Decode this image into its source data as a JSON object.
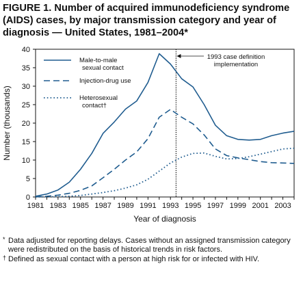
{
  "figure": {
    "title": "FIGURE 1. Number of acquired immunodeficiency syndrome (AIDS) cases, by major transmission category and year of diagnosis — United States, 1981–2004*"
  },
  "colors": {
    "series": "#1f5c8f",
    "text": "#111111",
    "axis": "#111111"
  },
  "chart_data": {
    "type": "line",
    "xlabel": "Year of diagnosis",
    "ylabel": "Number (thousands)",
    "xlim": [
      1981,
      2004
    ],
    "ylim": [
      0,
      40
    ],
    "x_ticks": [
      1981,
      1982,
      1983,
      1984,
      1985,
      1986,
      1987,
      1988,
      1989,
      1990,
      1991,
      1992,
      1993,
      1994,
      1995,
      1996,
      1997,
      1998,
      1999,
      2000,
      2001,
      2002,
      2003,
      2004
    ],
    "x_tick_labels": [
      "1981",
      "1983",
      "1985",
      "1987",
      "1989",
      "1991",
      "1993",
      "1995",
      "1997",
      "1999",
      "2001",
      "2003"
    ],
    "y_ticks": [
      0,
      5,
      10,
      15,
      20,
      25,
      30,
      35,
      40
    ],
    "y_tick_labels": [
      "0",
      "5",
      "10",
      "15",
      "20",
      "25",
      "30",
      "35",
      "40"
    ],
    "grid": false,
    "legend_position": "top-left",
    "x": [
      1981,
      1982,
      1983,
      1984,
      1985,
      1986,
      1987,
      1988,
      1989,
      1990,
      1991,
      1992,
      1993,
      1994,
      1995,
      1996,
      1997,
      1998,
      1999,
      2000,
      2001,
      2002,
      2003,
      2004
    ],
    "series": [
      {
        "name": "Male-to-male sexual contact",
        "legend_lines": [
          "Male-to-male",
          "sexual contact"
        ],
        "style": "solid",
        "values": [
          0.2,
          0.8,
          1.9,
          4.0,
          7.5,
          11.8,
          17.2,
          20.3,
          23.8,
          26.0,
          31.0,
          38.8,
          36.0,
          32.0,
          29.8,
          25.0,
          19.4,
          16.6,
          15.6,
          15.4,
          15.6,
          16.6,
          17.3,
          17.8
        ]
      },
      {
        "name": "Injection-drug use",
        "legend_lines": [
          "Injection-drug use"
        ],
        "style": "dashed",
        "values": [
          0.05,
          0.2,
          0.5,
          1.0,
          1.8,
          3.0,
          5.2,
          7.5,
          10.0,
          12.2,
          15.8,
          21.6,
          23.7,
          21.6,
          19.8,
          16.8,
          13.0,
          11.2,
          10.6,
          10.1,
          9.6,
          9.3,
          9.2,
          9.1
        ]
      },
      {
        "name": "Heterosexual contact†",
        "legend_lines": [
          "Heterosexual",
          "contact†"
        ],
        "style": "dotted",
        "values": [
          0.0,
          0.05,
          0.1,
          0.2,
          0.4,
          0.8,
          1.2,
          1.7,
          2.4,
          3.3,
          4.8,
          7.0,
          9.2,
          10.8,
          11.8,
          11.9,
          11.0,
          10.3,
          10.4,
          10.9,
          11.6,
          12.3,
          13.0,
          13.2
        ]
      }
    ],
    "reference_line": {
      "x": 1993.5,
      "label_lines": [
        "1993 case definition",
        "implementation"
      ]
    }
  },
  "footnotes": [
    {
      "mark": "*",
      "text": "Data adjusted for reporting delays. Cases without an assigned transmission category were redistributed on the basis of historical trends in risk factors."
    },
    {
      "mark": "†",
      "text": "Defined as sexual contact with a person at high risk for or infected with HIV."
    }
  ]
}
